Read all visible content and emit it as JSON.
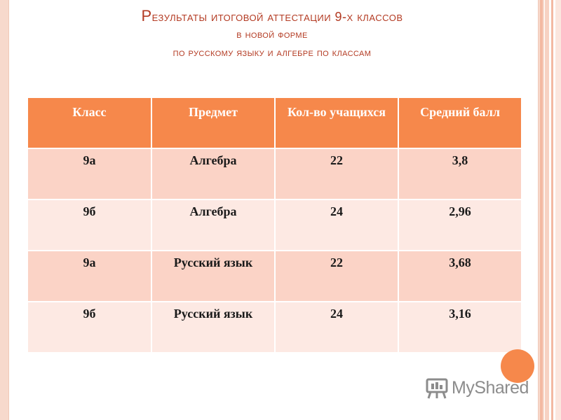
{
  "title": {
    "line1_initial": "Р",
    "line1_rest": "езультаты итоговой аттестации 9-х классов",
    "line2": "в новой форме",
    "line3": "по русскому языку и алгебре по классам"
  },
  "table": {
    "headers": [
      "Класс",
      "Предмет",
      "Кол-во учащихся",
      "Средний балл"
    ],
    "rows": [
      [
        "9а",
        "Алгебра",
        "22",
        "3,8"
      ],
      [
        "9б",
        "Алгебра",
        "24",
        "2,96"
      ],
      [
        "9а",
        "Русский язык",
        "22",
        "3,68"
      ],
      [
        "9б",
        "Русский язык",
        "24",
        "3,16"
      ]
    ]
  },
  "watermark": {
    "text": "MyShared",
    "icon": "presentation-board-icon"
  },
  "colors": {
    "accent": "#f6884b",
    "title": "#b33a22",
    "row_dark": "#fbd3c6",
    "row_light": "#fde9e3",
    "frame": "#f7d9cc"
  }
}
